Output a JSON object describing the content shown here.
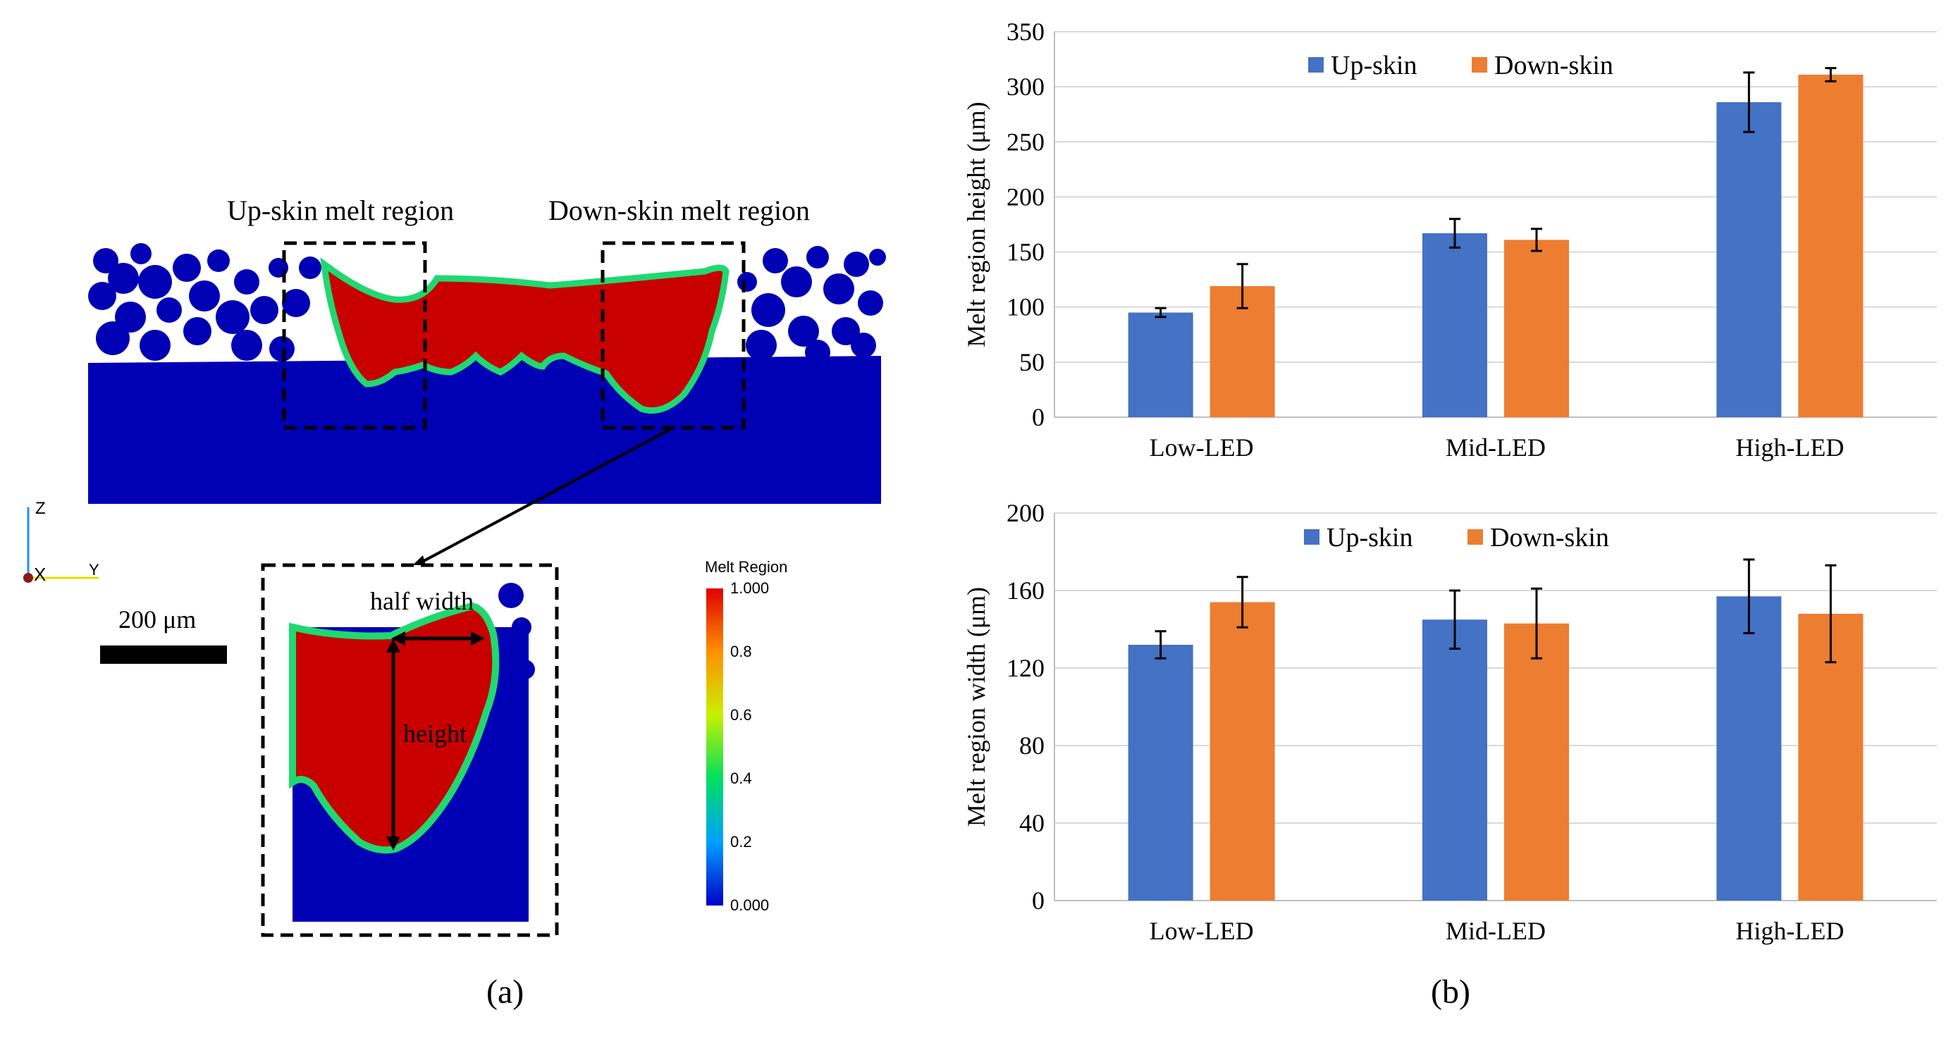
{
  "colors": {
    "up_skin": "#4472C4",
    "down_skin": "#ED7D31",
    "powder": "#0000B4",
    "melt": "#C80000",
    "grid": "#D9D9D9"
  },
  "panel_a": {
    "caption": "(a)",
    "up_skin_region_label": "Up-skin melt region",
    "down_skin_region_label": "Down-skin melt region",
    "half_width_label": "half width",
    "height_label": "height",
    "scale_bar_label": "200 μm",
    "axes_triad": {
      "z": "Z",
      "x": "X",
      "y": "Y"
    },
    "colorbar": {
      "title": "Melt Region",
      "ticks": [
        "1.000",
        "0.8",
        "0.6",
        "0.4",
        "0.2",
        "0.000"
      ]
    }
  },
  "panel_b": {
    "caption": "(b)"
  },
  "chart_data": [
    {
      "type": "bar",
      "ylabel": "Melt region height (μm)",
      "xlabel": "",
      "categories": [
        "Low-LED",
        "Mid-LED",
        "High-LED"
      ],
      "ylim": [
        0,
        350
      ],
      "yticks": [
        "0",
        "50",
        "100",
        "150",
        "200",
        "250",
        "300",
        "350"
      ],
      "grid": true,
      "legend_position": "top-center",
      "series": [
        {
          "name": "Up-skin",
          "values": [
            95,
            167,
            286
          ],
          "errors": [
            4,
            13,
            27
          ]
        },
        {
          "name": "Down-skin",
          "values": [
            119,
            161,
            311
          ],
          "errors": [
            20,
            10,
            6
          ]
        }
      ]
    },
    {
      "type": "bar",
      "ylabel": "Melt region width (μm)",
      "xlabel": "",
      "categories": [
        "Low-LED",
        "Mid-LED",
        "High-LED"
      ],
      "ylim": [
        0,
        200
      ],
      "yticks": [
        "0",
        "40",
        "80",
        "120",
        "160",
        "200"
      ],
      "grid": true,
      "legend_position": "top-center",
      "series": [
        {
          "name": "Up-skin",
          "values": [
            132,
            145,
            157
          ],
          "errors": [
            7,
            15,
            19
          ]
        },
        {
          "name": "Down-skin",
          "values": [
            154,
            143,
            148
          ],
          "errors": [
            13,
            18,
            25
          ]
        }
      ]
    }
  ]
}
